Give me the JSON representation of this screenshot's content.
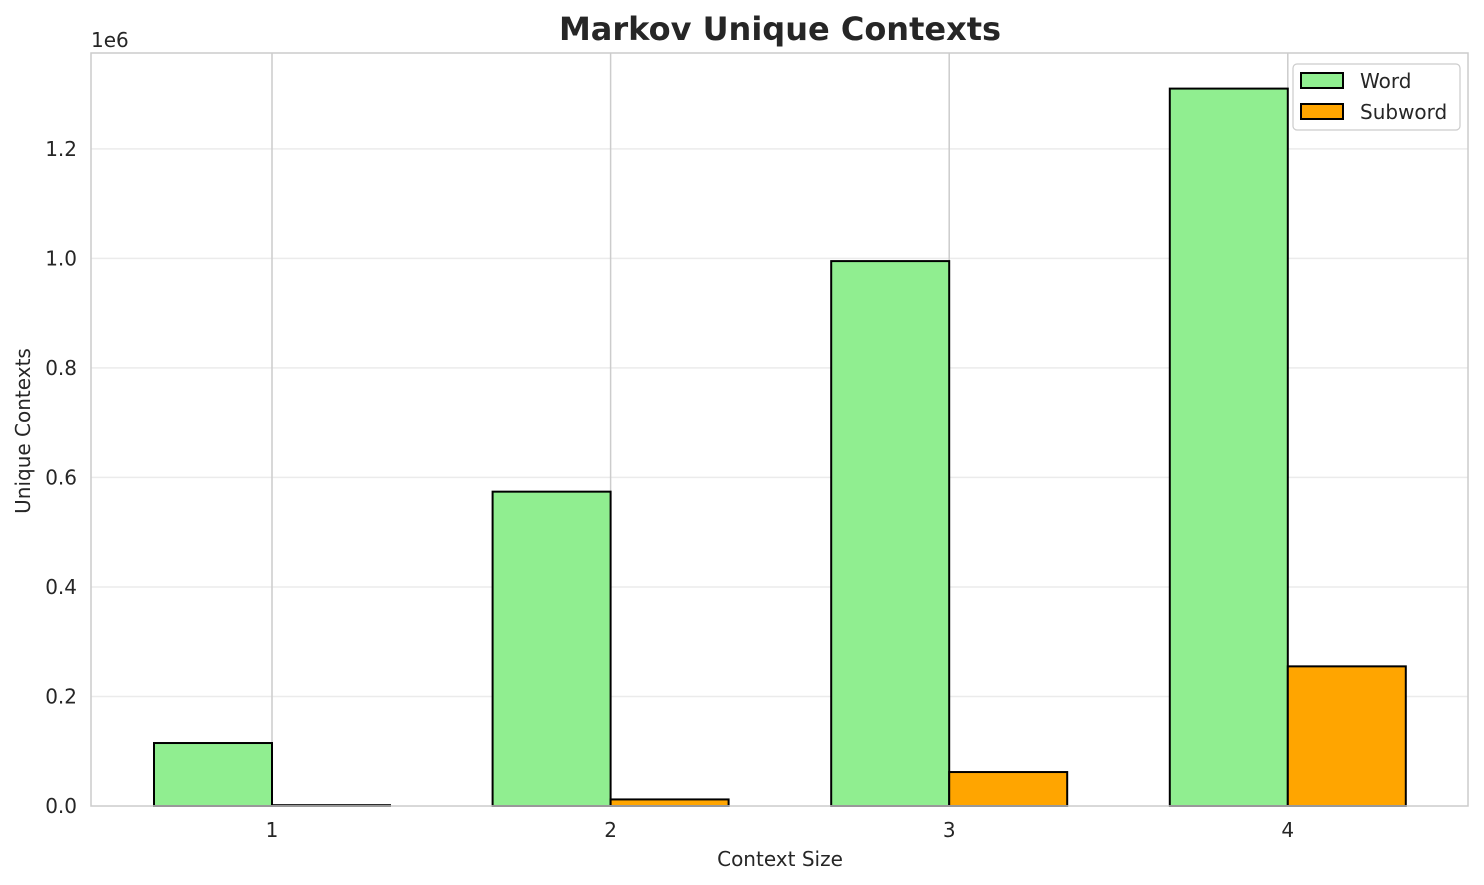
{
  "chart_data": {
    "type": "bar",
    "title": "Markov Unique Contexts",
    "xlabel": "Context Size",
    "ylabel": "Unique Contexts",
    "y_offset_label": "1e6",
    "categories": [
      "1",
      "2",
      "3",
      "4"
    ],
    "series": [
      {
        "name": "Word",
        "color": "#90ee90",
        "values": [
          115000,
          574000,
          995000,
          1310000
        ]
      },
      {
        "name": "Subword",
        "color": "#ffa500",
        "values": [
          1500,
          12000,
          62000,
          255000
        ]
      }
    ],
    "ylim": [
      0,
      1375000
    ],
    "yticks": [
      0,
      200000,
      400000,
      600000,
      800000,
      1000000,
      1200000
    ],
    "ytick_labels": [
      "0.0",
      "0.2",
      "0.4",
      "0.6",
      "0.8",
      "1.0",
      "1.2"
    ],
    "grid": true,
    "legend_position": "top-right"
  }
}
